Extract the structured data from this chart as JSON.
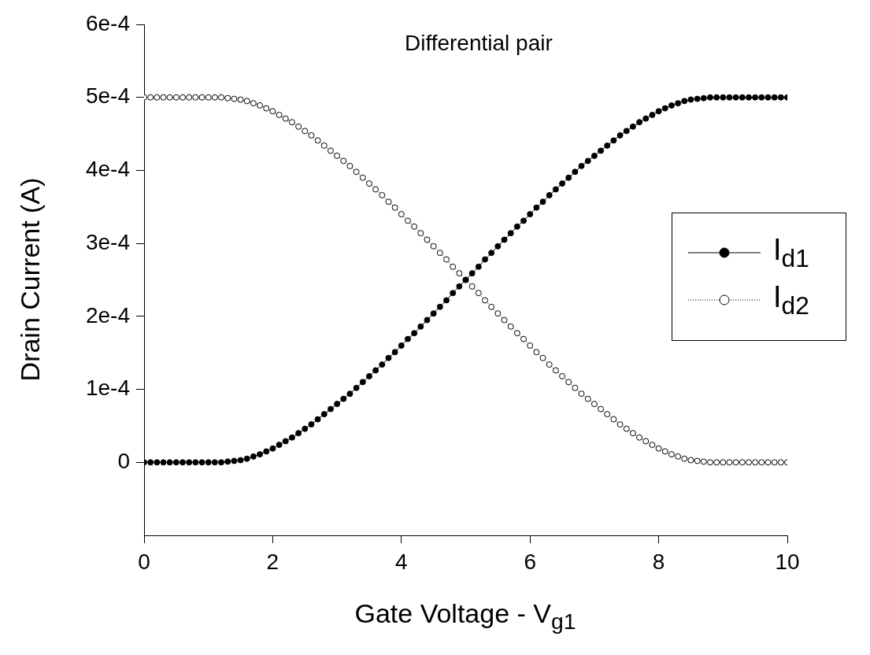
{
  "chart_data": {
    "type": "line",
    "xlabel": "Gate Voltage - V$_{g1}$",
    "ylabel": "Drain Current (A)",
    "annotations": [
      "Differential pair"
    ],
    "x": [
      0,
      0.1,
      0.2,
      0.3,
      0.4,
      0.5,
      0.6,
      0.7,
      0.8,
      0.9,
      1,
      1.1,
      1.2,
      1.3,
      1.4,
      1.5,
      1.6,
      1.7,
      1.8,
      1.9,
      2,
      2.1,
      2.2,
      2.3,
      2.4,
      2.5,
      2.6,
      2.7,
      2.8,
      2.9,
      3,
      3.1,
      3.2,
      3.3,
      3.4,
      3.5,
      3.6,
      3.7,
      3.8,
      3.9,
      4,
      4.1,
      4.2,
      4.3,
      4.4,
      4.5,
      4.6,
      4.7,
      4.8,
      4.9,
      5,
      5.1,
      5.2,
      5.3,
      5.4,
      5.5,
      5.6,
      5.7,
      5.8,
      5.9,
      6,
      6.1,
      6.2,
      6.3,
      6.4,
      6.5,
      6.6,
      6.7,
      6.8,
      6.9,
      7,
      7.1,
      7.2,
      7.3,
      7.4,
      7.5,
      7.6,
      7.7,
      7.8,
      7.9,
      8,
      8.1,
      8.2,
      8.3,
      8.4,
      8.5,
      8.6,
      8.7,
      8.8,
      8.9,
      9,
      9.1,
      9.2,
      9.3,
      9.4,
      9.5,
      9.6,
      9.7,
      9.8,
      9.9,
      10
    ],
    "series": [
      {
        "name": "I$_{d1}$",
        "color": "#000000",
        "line_style": "solid",
        "values": [
          0,
          0,
          0,
          0,
          0,
          0,
          0,
          0,
          0,
          0,
          0,
          0,
          0,
          1e-06,
          2e-06,
          3e-06,
          5e-06,
          8e-06,
          1.1e-05,
          1.5e-05,
          1.9e-05,
          2.4e-05,
          2.9e-05,
          3.4e-05,
          4e-05,
          4.6e-05,
          5.2e-05,
          5.9e-05,
          6.6e-05,
          7.3e-05,
          8e-05,
          8.7e-05,
          9.4e-05,
          0.000102,
          0.00011,
          0.000118,
          0.000126,
          0.000134,
          0.000143,
          0.000151,
          0.00016,
          0.000169,
          0.000177,
          0.000186,
          0.000195,
          0.000204,
          0.000213,
          0.000222,
          0.000232,
          0.000241,
          0.00025,
          0.000259,
          0.000268,
          0.000278,
          0.000287,
          0.000296,
          0.000305,
          0.000314,
          0.000323,
          0.000331,
          0.00034,
          0.000349,
          0.000357,
          0.000366,
          0.000374,
          0.000382,
          0.00039,
          0.000398,
          0.000406,
          0.000413,
          0.00042,
          0.000427,
          0.000434,
          0.000441,
          0.000448,
          0.000454,
          0.00046,
          0.000466,
          0.000471,
          0.000476,
          0.000481,
          0.000485,
          0.000489,
          0.000492,
          0.000495,
          0.000497,
          0.000498,
          0.000499,
          0.0005,
          0.0005,
          0.0005,
          0.0005,
          0.0005,
          0.0005,
          0.0005,
          0.0005,
          0.0005,
          0.0005,
          0.0005,
          0.0005,
          0.0005
        ]
      },
      {
        "name": "I$_{d2}$",
        "color": "#000000",
        "line_style": "dotted",
        "values": [
          0.0005,
          0.0005,
          0.0005,
          0.0005,
          0.0005,
          0.0005,
          0.0005,
          0.0005,
          0.0005,
          0.0005,
          0.0005,
          0.0005,
          0.0005,
          0.000499,
          0.000498,
          0.000497,
          0.000495,
          0.000492,
          0.000489,
          0.000485,
          0.000481,
          0.000476,
          0.000471,
          0.000466,
          0.00046,
          0.000454,
          0.000448,
          0.000441,
          0.000434,
          0.000427,
          0.00042,
          0.000413,
          0.000406,
          0.000398,
          0.00039,
          0.000382,
          0.000374,
          0.000366,
          0.000357,
          0.000349,
          0.00034,
          0.000331,
          0.000323,
          0.000314,
          0.000305,
          0.000296,
          0.000287,
          0.000278,
          0.000268,
          0.000259,
          0.00025,
          0.000241,
          0.000232,
          0.000222,
          0.000213,
          0.000204,
          0.000195,
          0.000186,
          0.000177,
          0.000169,
          0.00016,
          0.000151,
          0.000143,
          0.000134,
          0.000126,
          0.000118,
          0.00011,
          0.000102,
          9.4e-05,
          8.7e-05,
          8e-05,
          7.3e-05,
          6.6e-05,
          5.9e-05,
          5.2e-05,
          4.6e-05,
          4e-05,
          3.4e-05,
          2.9e-05,
          2.4e-05,
          1.9e-05,
          1.5e-05,
          1.1e-05,
          8e-06,
          5e-06,
          3e-06,
          2e-06,
          1e-06,
          0,
          0,
          0,
          0,
          0,
          0,
          0,
          0,
          0,
          0,
          0,
          0,
          0
        ]
      }
    ],
    "xlim": [
      0,
      10
    ],
    "xticks": [
      0,
      2,
      4,
      6,
      8,
      10
    ],
    "ylim": [
      -0.0001,
      0.0006
    ],
    "yticks": [
      0,
      {
        "value": 0.0001,
        "label": "1e-4"
      },
      {
        "value": 0.0002,
        "label": "2e-4"
      },
      {
        "value": 0.0003,
        "label": "3e-4"
      },
      {
        "value": 0.0004,
        "label": "4e-4"
      },
      {
        "value": 0.0005,
        "label": "5e-4"
      },
      {
        "value": 0.0006,
        "label": "6e-4"
      }
    ],
    "marker": "circle",
    "legend": "right"
  }
}
